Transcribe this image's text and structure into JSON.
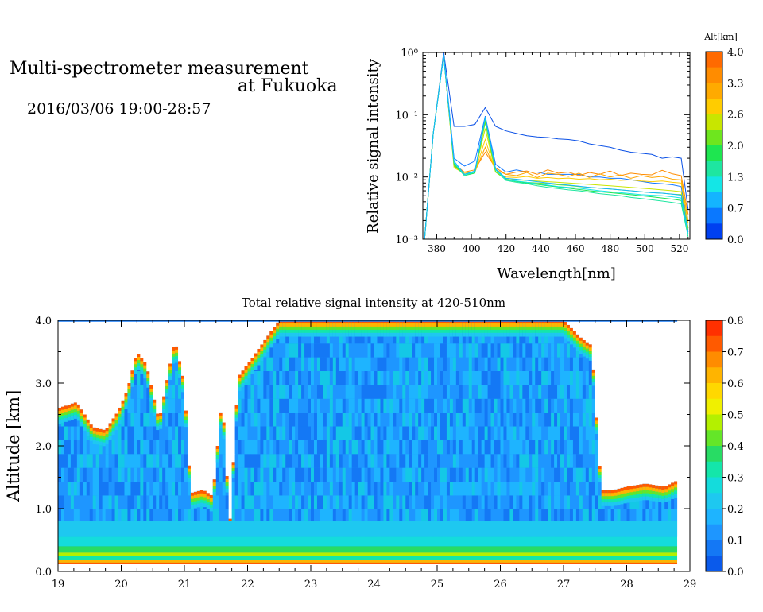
{
  "header": {
    "title_line1": "Multi-spectrometer measurement",
    "title_line2": "at Fukuoka",
    "datetime": "2016/03/06 19:00-28:57"
  },
  "chart_data": [
    {
      "type": "line",
      "xlabel": "Wavelength[nm]",
      "ylabel": "Relative signal intensity",
      "xlim": [
        372,
        526
      ],
      "ylim": [
        0.001,
        1
      ],
      "yscale": "log",
      "x_ticks": [
        380,
        400,
        420,
        440,
        460,
        480,
        500,
        520
      ],
      "y_ticks": [
        {
          "value": 0.001,
          "label": "10⁻³"
        },
        {
          "value": 0.01,
          "label": "10⁻²"
        },
        {
          "value": 0.1,
          "label": "10⁻¹"
        },
        {
          "value": 1,
          "label": "10⁰"
        }
      ],
      "colorbar": {
        "label": "Alt[km]",
        "ticks": [
          "4.0",
          "3.3",
          "2.6",
          "2.0",
          "1.3",
          "0.7",
          "0.0"
        ],
        "colors": [
          "#ff6a00",
          "#ff8c00",
          "#ffaa00",
          "#ffcc00",
          "#c8e600",
          "#6ee61e",
          "#1ee650",
          "#1ee6a0",
          "#14e6e6",
          "#14b4ff",
          "#0a78ff",
          "#0040f0"
        ]
      },
      "x": [
        373,
        378,
        384,
        390,
        396,
        402,
        408,
        414,
        420,
        426,
        432,
        438,
        444,
        450,
        456,
        462,
        468,
        474,
        480,
        486,
        492,
        498,
        504,
        510,
        516,
        521,
        525
      ],
      "series": [
        {
          "color": "#0a50e6",
          "values": [
            0.001,
            0.05,
            1.0,
            0.065,
            0.065,
            0.07,
            0.13,
            0.065,
            0.055,
            0.05,
            0.046,
            0.044,
            0.043,
            0.041,
            0.04,
            0.038,
            0.034,
            0.032,
            0.03,
            0.027,
            0.025,
            0.024,
            0.023,
            0.02,
            0.021,
            0.02,
            0.003
          ]
        },
        {
          "color": "#1478ff",
          "values": [
            0.001,
            0.05,
            0.95,
            0.02,
            0.015,
            0.018,
            0.095,
            0.016,
            0.012,
            0.013,
            0.012,
            0.012,
            0.011,
            0.011,
            0.011,
            0.011,
            0.01,
            0.01,
            0.0095,
            0.0095,
            0.009,
            0.0085,
            0.008,
            0.0078,
            0.0075,
            0.007,
            0.0015
          ]
        },
        {
          "color": "#ff8c00",
          "values": [
            0.001,
            0.05,
            0.9,
            0.016,
            0.012,
            0.013,
            0.025,
            0.014,
            0.011,
            0.012,
            0.0125,
            0.011,
            0.013,
            0.0115,
            0.012,
            0.0105,
            0.0118,
            0.011,
            0.0125,
            0.0105,
            0.0115,
            0.011,
            0.0108,
            0.0128,
            0.0112,
            0.0105,
            0.0025
          ]
        },
        {
          "color": "#ffa500",
          "values": [
            0.001,
            0.05,
            0.9,
            0.015,
            0.012,
            0.012,
            0.03,
            0.013,
            0.011,
            0.0105,
            0.0118,
            0.0098,
            0.0115,
            0.011,
            0.0102,
            0.0115,
            0.0098,
            0.0112,
            0.01,
            0.0108,
            0.0095,
            0.0105,
            0.0098,
            0.0102,
            0.0092,
            0.009,
            0.002
          ]
        },
        {
          "color": "#ffcc00",
          "values": [
            0.001,
            0.05,
            0.9,
            0.014,
            0.0115,
            0.012,
            0.04,
            0.012,
            0.01,
            0.0098,
            0.0102,
            0.0095,
            0.0098,
            0.0094,
            0.0096,
            0.0092,
            0.0094,
            0.009,
            0.0092,
            0.0088,
            0.009,
            0.0086,
            0.0084,
            0.0086,
            0.0082,
            0.008,
            0.0018
          ]
        },
        {
          "color": "#c8e600",
          "values": [
            0.001,
            0.05,
            0.9,
            0.015,
            0.011,
            0.012,
            0.06,
            0.012,
            0.0095,
            0.009,
            0.0088,
            0.0086,
            0.0084,
            0.0082,
            0.008,
            0.0078,
            0.0076,
            0.0074,
            0.0072,
            0.007,
            0.0068,
            0.0066,
            0.0064,
            0.0062,
            0.006,
            0.0058,
            0.0015
          ]
        },
        {
          "color": "#6ee61e",
          "values": [
            0.001,
            0.05,
            0.9,
            0.015,
            0.011,
            0.012,
            0.075,
            0.012,
            0.009,
            0.0085,
            0.0082,
            0.008,
            0.0078,
            0.0075,
            0.0073,
            0.007,
            0.0068,
            0.0066,
            0.0064,
            0.0062,
            0.006,
            0.0058,
            0.0056,
            0.0055,
            0.0053,
            0.0052,
            0.0014
          ]
        },
        {
          "color": "#1ee650",
          "values": [
            0.001,
            0.05,
            0.9,
            0.016,
            0.0105,
            0.0115,
            0.085,
            0.013,
            0.0092,
            0.0085,
            0.008,
            0.0076,
            0.0072,
            0.0069,
            0.0066,
            0.0063,
            0.006,
            0.0058,
            0.0056,
            0.0054,
            0.0052,
            0.005,
            0.0048,
            0.0046,
            0.0044,
            0.0042,
            0.0012
          ]
        },
        {
          "color": "#1ee6a0",
          "values": [
            0.001,
            0.05,
            0.9,
            0.017,
            0.0105,
            0.012,
            0.09,
            0.013,
            0.0088,
            0.0082,
            0.0078,
            0.0072,
            0.0068,
            0.0065,
            0.0062,
            0.006,
            0.0057,
            0.0054,
            0.0052,
            0.005,
            0.0047,
            0.0045,
            0.0043,
            0.0041,
            0.0039,
            0.0037,
            0.0011
          ]
        },
        {
          "color": "#14e6e6",
          "values": [
            0.001,
            0.05,
            0.9,
            0.017,
            0.011,
            0.012,
            0.09,
            0.013,
            0.009,
            0.0086,
            0.0082,
            0.0078,
            0.0074,
            0.007,
            0.0068,
            0.0066,
            0.0063,
            0.006,
            0.0058,
            0.0056,
            0.0054,
            0.0052,
            0.0051,
            0.005,
            0.0048,
            0.0046,
            0.0012
          ]
        },
        {
          "color": "#14b4ff",
          "values": [
            0.001,
            0.05,
            0.9,
            0.018,
            0.011,
            0.0125,
            0.092,
            0.0135,
            0.0095,
            0.0092,
            0.0088,
            0.0084,
            0.008,
            0.0077,
            0.0074,
            0.0071,
            0.0068,
            0.0066,
            0.0064,
            0.0062,
            0.006,
            0.0058,
            0.0056,
            0.0055,
            0.0053,
            0.0051,
            0.0013
          ]
        }
      ]
    },
    {
      "type": "heatmap",
      "title": "Total relative signal intensity at 420-510nm",
      "ylabel": "Altitude [km]",
      "xlim": [
        19,
        29
      ],
      "ylim": [
        0,
        4
      ],
      "x_ticks": [
        "19",
        "20",
        "21",
        "22",
        "23",
        "24",
        "25",
        "26",
        "27",
        "28",
        "29"
      ],
      "y_ticks": [
        "0.0",
        "1.0",
        "2.0",
        "3.0",
        "4.0"
      ],
      "colorbar": {
        "ticks": [
          "0.8",
          "0.7",
          "0.6",
          "0.5",
          "0.4",
          "0.3",
          "0.2",
          "0.1",
          "0.0"
        ],
        "colors": [
          "#ff3000",
          "#ff5a00",
          "#ff8c00",
          "#ffb400",
          "#ffd800",
          "#f0f000",
          "#b4f000",
          "#64e628",
          "#28dc64",
          "#14e6aa",
          "#14dcdc",
          "#1ec8f0",
          "#1eb4ff",
          "#1e96ff",
          "#1478f5",
          "#0a5aeb"
        ]
      },
      "bounds_t": [
        19,
        19.3,
        19.55,
        19.75,
        19.95,
        20.1,
        20.25,
        20.4,
        20.6,
        20.85,
        21.0,
        21.1,
        21.3,
        21.45,
        21.6,
        21.72,
        21.85,
        22.0,
        22.5,
        23.0,
        23.5,
        23.8,
        24.0,
        24.5,
        25.0,
        25.5,
        26.0,
        26.5,
        27.0,
        27.3,
        27.45,
        27.6,
        27.8,
        28.0,
        28.3,
        28.6,
        28.8
      ],
      "bounds_alt": [
        2.6,
        2.7,
        2.3,
        2.25,
        2.55,
        2.9,
        3.5,
        3.3,
        2.4,
        3.7,
        3.0,
        1.25,
        1.3,
        1.2,
        2.8,
        0.75,
        3.1,
        3.3,
        4.0,
        4.0,
        4.0,
        4.0,
        4.0,
        4.0,
        4.0,
        4.0,
        4.0,
        4.0,
        4.0,
        3.7,
        3.6,
        1.3,
        1.3,
        1.35,
        1.4,
        1.35,
        1.45
      ]
    }
  ]
}
